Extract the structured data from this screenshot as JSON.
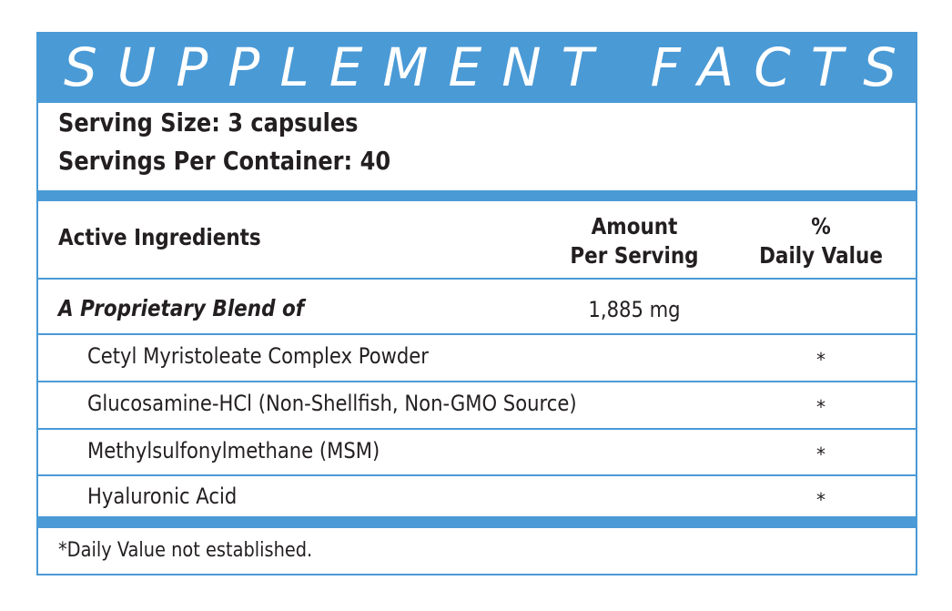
{
  "title": "SUPPLEMENT FACTS",
  "serving_size": "Serving Size: 3 capsules",
  "servings_per_container": "Servings Per Container: 40",
  "header": {
    "col1": "Active Ingredients",
    "col2_line1": "Amount",
    "col2_line2": "Per Serving",
    "col3_line1": "%",
    "col3_line2": "Daily Value"
  },
  "blend": {
    "name": "A Proprietary Blend of",
    "amount": "1,885 mg"
  },
  "ingredients": [
    {
      "name": "Cetyl Myristoleate Complex Powder",
      "daily_value": "*"
    },
    {
      "name": "Glucosamine-HCl  (Non-Shellfish, Non-GMO Source)",
      "daily_value": "*"
    },
    {
      "name": "Methylsulfonylmethane (MSM)",
      "daily_value": "*"
    },
    {
      "name": "Hyaluronic Acid",
      "daily_value": "*"
    }
  ],
  "footnote": "*Daily Value not established.",
  "colors": {
    "accent": "#4a9ad6",
    "text": "#231f20",
    "background": "#ffffff"
  }
}
